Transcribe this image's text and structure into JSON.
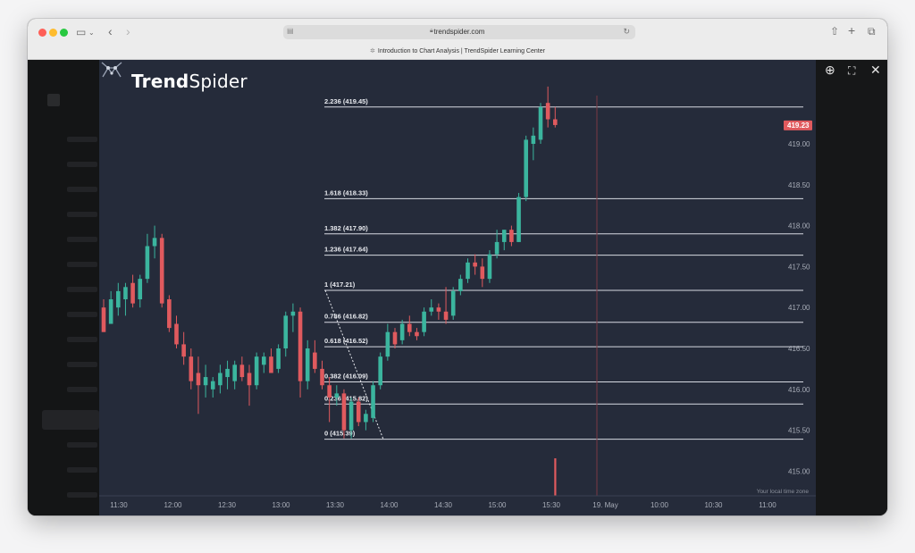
{
  "browser": {
    "url": "trendspider.com",
    "tab_title": "Introduction to Chart Analysis | TrendSpider Learning Center"
  },
  "brand": {
    "name_bold": "Trend",
    "name_light": "Spider"
  },
  "chart_data": {
    "type": "candlestick",
    "title": "",
    "current_price": "419.23",
    "price_axis_ticks": [
      "419.00",
      "418.50",
      "418.00",
      "417.50",
      "417.00",
      "416.50",
      "416.00",
      "415.50",
      "415.00"
    ],
    "price_tick_values": [
      419.0,
      418.5,
      418.0,
      417.5,
      417.0,
      416.5,
      416.0,
      415.5,
      415.0
    ],
    "time_axis_ticks": [
      "11:30",
      "12:00",
      "12:30",
      "13:00",
      "13:30",
      "14:00",
      "14:30",
      "15:00",
      "15:30",
      "19. May",
      "10:00",
      "10:30",
      "11:00"
    ],
    "timezone_label": "Your local time zone",
    "fib_levels": [
      {
        "label": "2.236 (419.45)",
        "price": 419.45
      },
      {
        "label": "1.618 (418.33)",
        "price": 418.33
      },
      {
        "label": "1.382 (417.90)",
        "price": 417.9
      },
      {
        "label": "1.236 (417.64)",
        "price": 417.64
      },
      {
        "label": "1 (417.21)",
        "price": 417.21
      },
      {
        "label": "0.786 (416.82)",
        "price": 416.82
      },
      {
        "label": "0.618 (416.52)",
        "price": 416.52
      },
      {
        "label": "0.382 (416.09)",
        "price": 416.09
      },
      {
        "label": "0.236 (415.82)",
        "price": 415.82
      },
      {
        "label": "0 (415.39)",
        "price": 415.39
      }
    ],
    "candles": [
      {
        "o": 417.0,
        "h": 417.1,
        "l": 416.7,
        "c": 416.7
      },
      {
        "o": 416.8,
        "h": 417.2,
        "l": 416.8,
        "c": 417.1
      },
      {
        "o": 417.0,
        "h": 417.3,
        "l": 416.9,
        "c": 417.2
      },
      {
        "o": 417.1,
        "h": 417.3,
        "l": 416.9,
        "c": 417.25
      },
      {
        "o": 417.3,
        "h": 417.4,
        "l": 417.0,
        "c": 417.05
      },
      {
        "o": 417.1,
        "h": 417.4,
        "l": 417.0,
        "c": 417.35
      },
      {
        "o": 417.35,
        "h": 417.9,
        "l": 417.3,
        "c": 417.75
      },
      {
        "o": 417.75,
        "h": 418.0,
        "l": 417.6,
        "c": 417.85
      },
      {
        "o": 417.85,
        "h": 417.9,
        "l": 417.0,
        "c": 417.05
      },
      {
        "o": 417.1,
        "h": 417.15,
        "l": 416.7,
        "c": 416.75
      },
      {
        "o": 416.8,
        "h": 416.9,
        "l": 416.5,
        "c": 416.55
      },
      {
        "o": 416.55,
        "h": 416.7,
        "l": 416.3,
        "c": 416.4
      },
      {
        "o": 416.4,
        "h": 416.5,
        "l": 416.0,
        "c": 416.1
      },
      {
        "o": 416.2,
        "h": 416.4,
        "l": 415.7,
        "c": 416.05
      },
      {
        "o": 416.05,
        "h": 416.3,
        "l": 415.9,
        "c": 416.15
      },
      {
        "o": 416.0,
        "h": 416.15,
        "l": 415.9,
        "c": 416.1
      },
      {
        "o": 416.05,
        "h": 416.3,
        "l": 415.95,
        "c": 416.2
      },
      {
        "o": 416.15,
        "h": 416.35,
        "l": 416.0,
        "c": 416.25
      },
      {
        "o": 416.1,
        "h": 416.35,
        "l": 416.0,
        "c": 416.3
      },
      {
        "o": 416.3,
        "h": 416.4,
        "l": 416.1,
        "c": 416.15
      },
      {
        "o": 416.2,
        "h": 416.3,
        "l": 415.8,
        "c": 416.05
      },
      {
        "o": 416.05,
        "h": 416.45,
        "l": 416.0,
        "c": 416.4
      },
      {
        "o": 416.3,
        "h": 416.45,
        "l": 416.2,
        "c": 416.4
      },
      {
        "o": 416.4,
        "h": 416.5,
        "l": 416.2,
        "c": 416.2
      },
      {
        "o": 416.25,
        "h": 416.55,
        "l": 416.2,
        "c": 416.5
      },
      {
        "o": 416.5,
        "h": 416.95,
        "l": 416.4,
        "c": 416.9
      },
      {
        "o": 416.9,
        "h": 417.05,
        "l": 416.7,
        "c": 416.95
      },
      {
        "o": 416.95,
        "h": 417.0,
        "l": 415.9,
        "c": 416.1
      },
      {
        "o": 416.1,
        "h": 416.6,
        "l": 416.0,
        "c": 416.5
      },
      {
        "o": 416.45,
        "h": 416.6,
        "l": 416.2,
        "c": 416.25
      },
      {
        "o": 416.25,
        "h": 416.35,
        "l": 416.0,
        "c": 416.05
      },
      {
        "o": 416.05,
        "h": 416.15,
        "l": 415.6,
        "c": 415.9
      },
      {
        "o": 415.9,
        "h": 416.05,
        "l": 415.8,
        "c": 415.95
      },
      {
        "o": 415.95,
        "h": 416.0,
        "l": 415.4,
        "c": 415.5
      },
      {
        "o": 415.5,
        "h": 415.9,
        "l": 415.4,
        "c": 415.85
      },
      {
        "o": 415.85,
        "h": 415.9,
        "l": 415.55,
        "c": 415.6
      },
      {
        "o": 415.6,
        "h": 415.75,
        "l": 415.5,
        "c": 415.7
      },
      {
        "o": 415.65,
        "h": 416.1,
        "l": 415.6,
        "c": 416.05
      },
      {
        "o": 416.05,
        "h": 416.45,
        "l": 416.0,
        "c": 416.4
      },
      {
        "o": 416.4,
        "h": 416.8,
        "l": 416.35,
        "c": 416.7
      },
      {
        "o": 416.7,
        "h": 416.75,
        "l": 416.5,
        "c": 416.55
      },
      {
        "o": 416.6,
        "h": 416.85,
        "l": 416.55,
        "c": 416.8
      },
      {
        "o": 416.8,
        "h": 416.9,
        "l": 416.65,
        "c": 416.7
      },
      {
        "o": 416.7,
        "h": 416.75,
        "l": 416.6,
        "c": 416.65
      },
      {
        "o": 416.7,
        "h": 417.0,
        "l": 416.65,
        "c": 416.95
      },
      {
        "o": 416.95,
        "h": 417.1,
        "l": 416.9,
        "c": 417.0
      },
      {
        "o": 417.0,
        "h": 417.05,
        "l": 416.85,
        "c": 416.95
      },
      {
        "o": 416.95,
        "h": 417.25,
        "l": 416.8,
        "c": 416.85
      },
      {
        "o": 416.9,
        "h": 417.25,
        "l": 416.85,
        "c": 417.2
      },
      {
        "o": 417.2,
        "h": 417.4,
        "l": 417.15,
        "c": 417.35
      },
      {
        "o": 417.35,
        "h": 417.6,
        "l": 417.3,
        "c": 417.55
      },
      {
        "o": 417.55,
        "h": 417.65,
        "l": 417.4,
        "c": 417.5
      },
      {
        "o": 417.5,
        "h": 417.6,
        "l": 417.25,
        "c": 417.35
      },
      {
        "o": 417.35,
        "h": 417.7,
        "l": 417.3,
        "c": 417.65
      },
      {
        "o": 417.65,
        "h": 417.95,
        "l": 417.6,
        "c": 417.8
      },
      {
        "o": 417.8,
        "h": 417.95,
        "l": 417.7,
        "c": 417.95
      },
      {
        "o": 417.95,
        "h": 418.0,
        "l": 417.75,
        "c": 417.8
      },
      {
        "o": 417.8,
        "h": 418.4,
        "l": 417.8,
        "c": 418.35
      },
      {
        "o": 418.35,
        "h": 419.1,
        "l": 418.3,
        "c": 419.05
      },
      {
        "o": 419.0,
        "h": 419.2,
        "l": 418.8,
        "c": 419.1
      },
      {
        "o": 419.05,
        "h": 419.5,
        "l": 419.0,
        "c": 419.45
      },
      {
        "o": 419.5,
        "h": 419.7,
        "l": 419.2,
        "c": 419.3
      },
      {
        "o": 419.3,
        "h": 419.45,
        "l": 419.2,
        "c": 419.23
      }
    ],
    "volume_bar_value": 1
  }
}
